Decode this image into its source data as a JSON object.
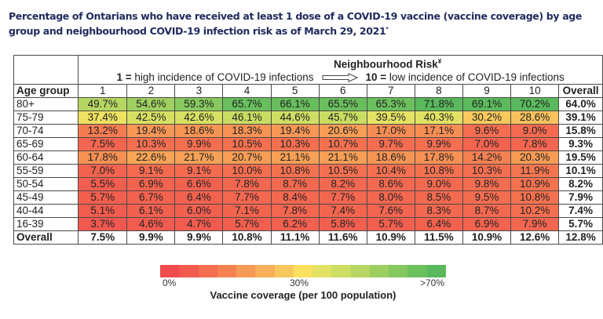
{
  "title": "Percentage of Ontarians who have received at least 1 dose of a COVID-19 vaccine (vaccine coverage) by age group and neighbourhood COVID-19 infection risk as of March 29, 2021",
  "title_footnote_mark": "*",
  "header": {
    "risk_title": "Neighbourhood Risk",
    "risk_title_mark": "¥",
    "high_label_num": "1 =",
    "high_label_text": " high incidence of COVID-19 infections",
    "low_label_num": "10 =",
    "low_label_text": " low incidence of COVID-19 infections",
    "arrow_icon": "right-arrow-icon"
  },
  "chart_data": {
    "type": "heatmap",
    "title": "Percentage of Ontarians who have received at least 1 dose of a COVID-19 vaccine (vaccine coverage) by age group and neighbourhood COVID-19 infection risk as of March 29, 2021",
    "xlabel": "Neighbourhood Risk",
    "ylabel": "Age group",
    "row_header": "Age group",
    "columns": [
      "1",
      "2",
      "3",
      "4",
      "5",
      "6",
      "7",
      "8",
      "9",
      "10"
    ],
    "overall_column_label": "Overall",
    "rows": [
      {
        "label": "80+",
        "values": [
          49.7,
          54.6,
          59.3,
          65.7,
          66.1,
          65.5,
          65.3,
          71.8,
          69.1,
          70.2
        ],
        "overall": 64.0
      },
      {
        "label": "75-79",
        "values": [
          37.4,
          42.5,
          42.6,
          46.1,
          44.6,
          45.7,
          39.5,
          40.3,
          30.2,
          28.6
        ],
        "overall": 39.1
      },
      {
        "label": "70-74",
        "values": [
          13.2,
          19.4,
          18.6,
          18.3,
          19.4,
          20.6,
          17.0,
          17.1,
          9.6,
          9.0
        ],
        "overall": 15.8
      },
      {
        "label": "65-69",
        "values": [
          7.5,
          10.3,
          9.9,
          10.5,
          10.3,
          10.7,
          9.7,
          9.9,
          7.0,
          7.8
        ],
        "overall": 9.3
      },
      {
        "label": "60-64",
        "values": [
          17.8,
          22.6,
          21.7,
          20.7,
          21.1,
          21.1,
          18.6,
          17.8,
          14.2,
          20.3
        ],
        "overall": 19.5
      },
      {
        "label": "55-59",
        "values": [
          7.0,
          9.1,
          9.1,
          10.0,
          10.8,
          10.5,
          10.4,
          10.8,
          10.3,
          11.9
        ],
        "overall": 10.1
      },
      {
        "label": "50-54",
        "values": [
          5.5,
          6.9,
          6.6,
          7.8,
          8.7,
          8.2,
          8.6,
          9.0,
          9.8,
          10.9
        ],
        "overall": 8.2
      },
      {
        "label": "45-49",
        "values": [
          5.7,
          6.7,
          6.4,
          7.7,
          8.4,
          7.7,
          8.0,
          8.5,
          9.5,
          10.8
        ],
        "overall": 7.9
      },
      {
        "label": "40-44",
        "values": [
          5.1,
          6.1,
          6.0,
          7.1,
          7.8,
          7.4,
          7.6,
          8.3,
          8.7,
          10.2
        ],
        "overall": 7.4
      },
      {
        "label": "16-39",
        "values": [
          3.7,
          4.6,
          4.7,
          5.7,
          6.2,
          5.8,
          5.7,
          6.4,
          6.9,
          7.9
        ],
        "overall": 5.7
      }
    ],
    "overall_row": {
      "label": "Overall",
      "values": [
        7.5,
        9.9,
        9.9,
        10.8,
        11.1,
        11.6,
        10.9,
        11.5,
        10.9,
        12.6
      ],
      "overall": 12.8
    },
    "unit": "%",
    "legend": {
      "title": "Vaccine coverage (per 100 population)",
      "ticks": [
        "0%",
        "30%",
        ">70%"
      ],
      "range": [
        0,
        70
      ],
      "placement": "bottom-center",
      "colors": [
        "#f04c4e",
        "#f25c4f",
        "#f46e50",
        "#f58352",
        "#f79a55",
        "#f8af59",
        "#f9c85d",
        "#fbe05f",
        "#e2e264",
        "#cdde63",
        "#b5d662",
        "#9ccf60",
        "#84c85e",
        "#6cc05d",
        "#59b95c"
      ]
    }
  }
}
